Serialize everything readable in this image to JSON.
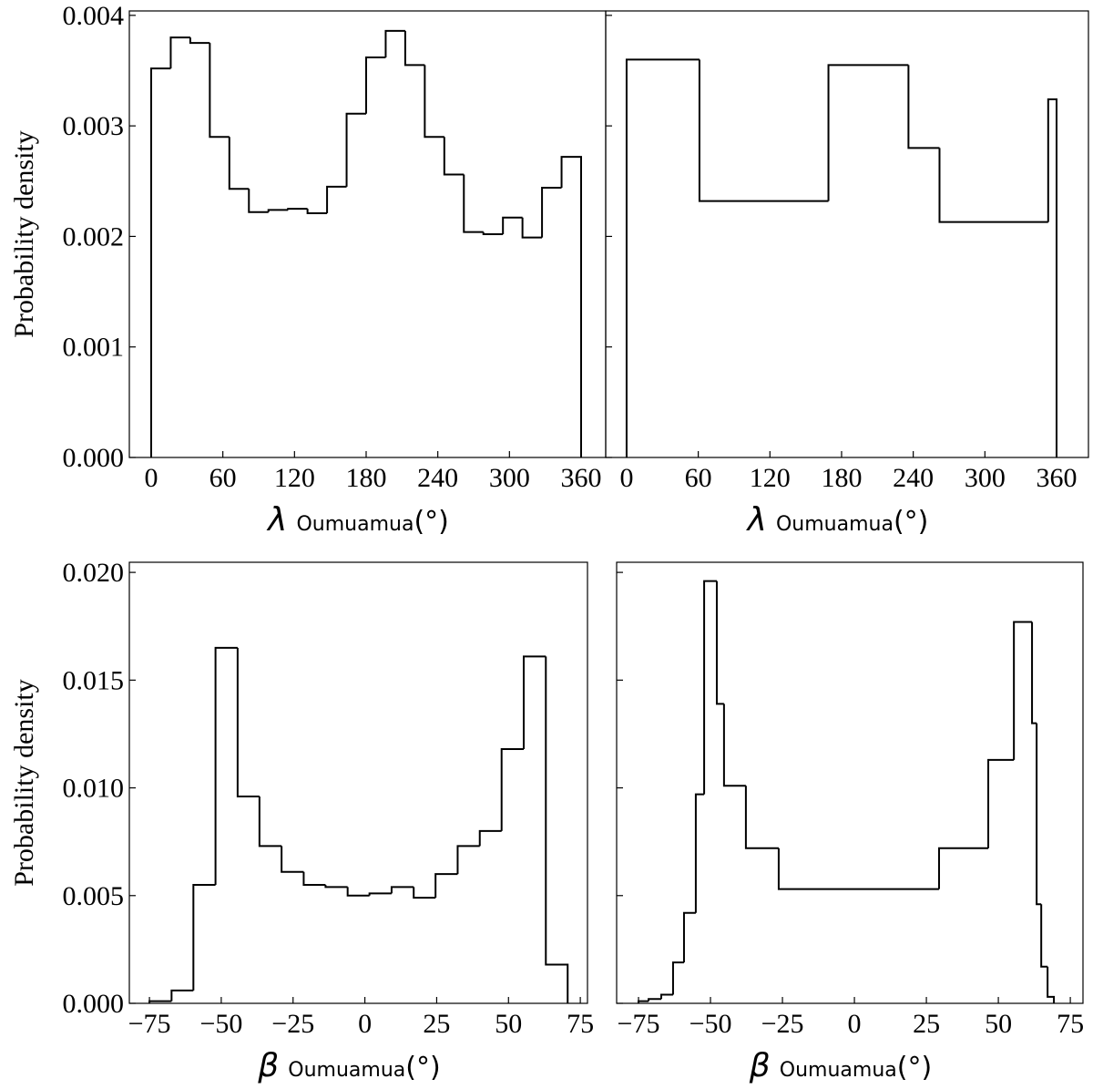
{
  "chart_data": [
    {
      "type": "histogram",
      "ylabel": "Probability density",
      "xlabel": {
        "symbol": "λ",
        "subscript": "Oumuamua",
        "unit": "(°)"
      },
      "bins": [
        0,
        16.36,
        32.73,
        49.09,
        65.45,
        81.82,
        98.18,
        114.55,
        130.91,
        147.27,
        163.64,
        180,
        196.36,
        212.73,
        229.09,
        245.45,
        261.82,
        278.18,
        294.55,
        310.91,
        327.27,
        343.64,
        360
      ],
      "values": [
        0.00352,
        0.0038,
        0.00375,
        0.0029,
        0.00243,
        0.00222,
        0.00224,
        0.00225,
        0.00221,
        0.00245,
        0.00311,
        0.00362,
        0.00386,
        0.00355,
        0.0029,
        0.00256,
        0.00204,
        0.00202,
        0.00217,
        0.00199,
        0.00244,
        0.00272
      ],
      "color": "#000000",
      "xlim": [
        -18.3,
        380.6
      ],
      "xticks": [
        0,
        60,
        120,
        180,
        240,
        300,
        360
      ],
      "ylim": [
        0,
        0.00404
      ],
      "yticks": [
        {
          "value": 0,
          "label": "0.000"
        },
        {
          "value": 0.001,
          "label": "0.001"
        },
        {
          "value": 0.002,
          "label": "0.002"
        },
        {
          "value": 0.003,
          "label": "0.003"
        },
        {
          "value": 0.004,
          "label": "0.004"
        }
      ]
    },
    {
      "type": "histogram",
      "xlabel": {
        "symbol": "λ",
        "subscript": "Oumuamua",
        "unit": "(°)"
      },
      "bins": [
        0,
        61,
        169,
        236,
        262,
        353,
        360
      ],
      "values": [
        0.0036,
        0.00232,
        0.00355,
        0.0028,
        0.00213,
        0.00324
      ],
      "color": "#000000",
      "xlim": [
        -17.5,
        386.7
      ],
      "xticks": [
        0,
        60,
        120,
        180,
        240,
        300,
        360
      ],
      "ylim": [
        0,
        0.00404
      ],
      "yticks": [
        0,
        0.001,
        0.002,
        0.003,
        0.004
      ],
      "show_ytick_labels": false
    },
    {
      "type": "histogram",
      "ylabel": "Probability density",
      "xlabel": {
        "symbol": "β",
        "subscript": "Oumuamua",
        "unit": "(°)"
      },
      "bins": [
        -75,
        -67.3,
        -59.7,
        -52.0,
        -44.3,
        -36.7,
        -29.0,
        -21.3,
        -13.7,
        -6.0,
        1.6,
        9.3,
        17.0,
        24.6,
        32.3,
        40.0,
        47.6,
        55.3,
        63.0,
        70.6
      ],
      "values": [
        0.0001,
        0.0006,
        0.0055,
        0.0165,
        0.0096,
        0.0073,
        0.0061,
        0.0055,
        0.0054,
        0.005,
        0.0051,
        0.0054,
        0.0049,
        0.006,
        0.0073,
        0.008,
        0.0118,
        0.0161,
        0.0018
      ],
      "color": "#000000",
      "xlim": [
        -82,
        77.5
      ],
      "xticks": [
        {
          "value": -75,
          "label": "−75"
        },
        {
          "value": -50,
          "label": "−50"
        },
        {
          "value": -25,
          "label": "−25"
        },
        0,
        25,
        50,
        75
      ],
      "ylim": [
        0,
        0.02047
      ],
      "yticks": [
        {
          "value": 0,
          "label": "0.000"
        },
        {
          "value": 0.005,
          "label": "0.005"
        },
        {
          "value": 0.01,
          "label": "0.010"
        },
        {
          "value": 0.015,
          "label": "0.015"
        },
        {
          "value": 0.02,
          "label": "0.020"
        }
      ]
    },
    {
      "type": "histogram",
      "xlabel": {
        "symbol": "β",
        "subscript": "Oumuamua",
        "unit": "(°)"
      },
      "bins": [
        -75.0,
        -71.5,
        -67.1,
        -63.0,
        -59.2,
        -55.1,
        -52.2,
        -47.8,
        -45.3,
        -37.7,
        -26.3,
        29.4,
        46.5,
        55.4,
        61.7,
        63.3,
        64.9,
        67.1,
        69.3
      ],
      "values": [
        0.0001,
        0.0002,
        0.0004,
        0.0019,
        0.0042,
        0.0097,
        0.0196,
        0.0139,
        0.0101,
        0.0072,
        0.0053,
        0.0072,
        0.0113,
        0.0177,
        0.013,
        0.0046,
        0.0017,
        0.0003
      ],
      "color": "#000000",
      "xlim": [
        -82.6,
        79.4
      ],
      "xticks": [
        {
          "value": -75,
          "label": "−75"
        },
        {
          "value": -50,
          "label": "−50"
        },
        {
          "value": -25,
          "label": "−25"
        },
        0,
        25,
        50,
        75
      ],
      "ylim": [
        0,
        0.02047
      ],
      "yticks": [
        0,
        0.005,
        0.01,
        0.015,
        0.02
      ],
      "show_ytick_labels": false
    }
  ]
}
